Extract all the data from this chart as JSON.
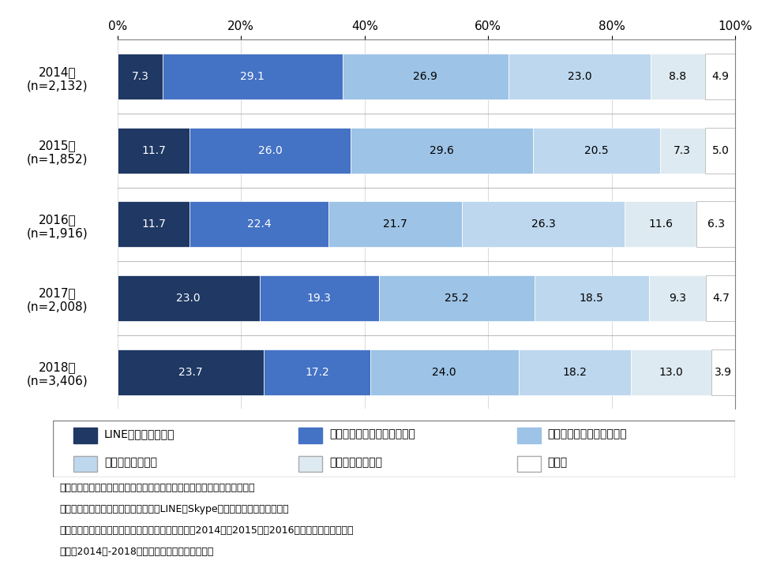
{
  "years": [
    "2014年\n(n=2,132)",
    "2015年\n(n=1,852)",
    "2016年\n(n=1,916)",
    "2017年\n(n=2,008)",
    "2018年\n(n=3,406)"
  ],
  "categories": [
    "LINEでのメッセージ",
    "スマホ・ケータイでのメール",
    "スマホ・ケータイでの通話",
    "固定電話での通話",
    "直接会って伝える",
    "その他"
  ],
  "data": [
    [
      7.3,
      29.1,
      26.9,
      23.0,
      8.8,
      4.9
    ],
    [
      11.7,
      26.0,
      29.6,
      20.5,
      7.3,
      5.0
    ],
    [
      11.7,
      22.4,
      21.7,
      26.3,
      11.6,
      6.3
    ],
    [
      23.0,
      19.3,
      25.2,
      18.5,
      9.3,
      4.7
    ],
    [
      23.7,
      17.2,
      24.0,
      18.2,
      13.0,
      3.9
    ]
  ],
  "colors": [
    "#1f3864",
    "#4472c4",
    "#9dc3e6",
    "#bdd7ee",
    "#deeaf1",
    "#ffffff"
  ],
  "notes": [
    "注１：スマホ・ケータイ所有者で、それぞれの連絡相手がいる人が回答。",
    "注２：スマホ・ケータイでの通話は、LINEやSkypeなどを用いた通話も含む。",
    "注３：「その他」は「パソコンを用いたメール」と2014年、2015年、2016年は「手紙」を含む。",
    "出所：2014年-2018年一般向けモバイル動向調査"
  ]
}
